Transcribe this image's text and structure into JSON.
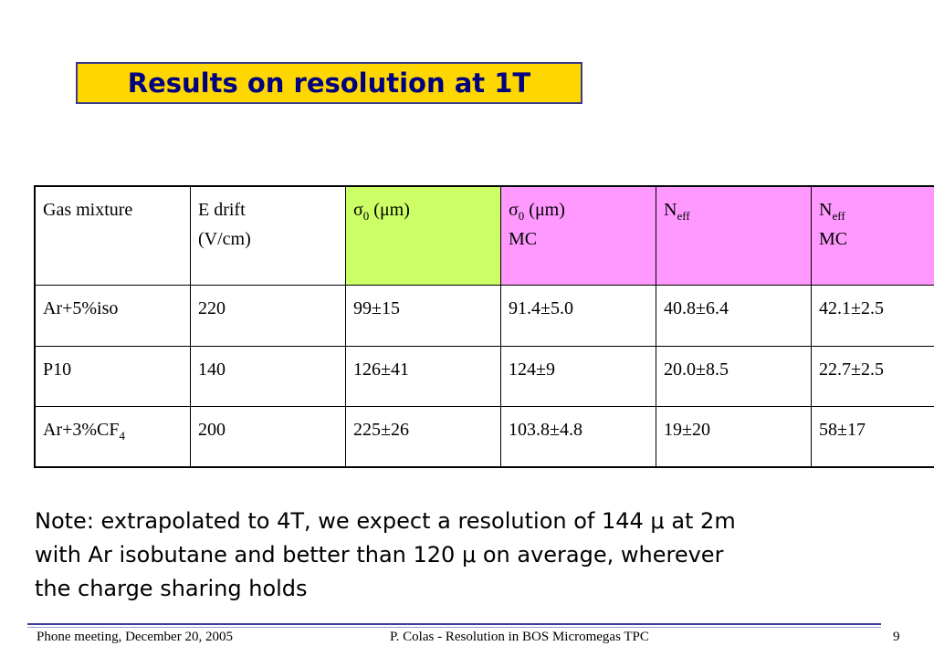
{
  "title": "Results on resolution at 1T",
  "table": {
    "header": [
      {
        "text": "Gas mixture"
      },
      {
        "text": "E drift",
        "line2": "(V/cm)"
      },
      {
        "text": "σ",
        "sub": "0",
        "after": " (μm)"
      },
      {
        "text": "σ",
        "sub": "0",
        "after": " (μm)",
        "line2": "MC"
      },
      {
        "text": "N",
        "sub": "eff"
      },
      {
        "text": "N",
        "sub": "eff",
        "line2": "MC"
      }
    ],
    "rows": [
      [
        {
          "text": "Ar+5%iso"
        },
        {
          "text": "220"
        },
        {
          "text": "99±15"
        },
        {
          "text": "91.4±5.0"
        },
        {
          "text": "40.8±6.4"
        },
        {
          "text": "42.1±2.5"
        }
      ],
      [
        {
          "text": "P10"
        },
        {
          "text": "140"
        },
        {
          "text": "126±41"
        },
        {
          "text": "124±9"
        },
        {
          "text": "20.0±8.5"
        },
        {
          "text": "22.7±2.5"
        }
      ],
      [
        {
          "text": "Ar+3%CF",
          "sub": "4"
        },
        {
          "text": "200"
        },
        {
          "text": "225±26"
        },
        {
          "text": "103.8±4.8"
        },
        {
          "text": "19±20"
        },
        {
          "text": "58±17"
        }
      ]
    ]
  },
  "note": {
    "lines": [
      "Note: extrapolated to 4T, we expect a resolution of 144 μ at 2m",
      "with Ar isobutane and better than 120 μ on average, wherever",
      "the charge sharing holds"
    ]
  },
  "footer": {
    "left": "Phone meeting, December 20, 2005",
    "center": "P. Colas  -  Resolution in BOS Micromegas TPC",
    "right": "9"
  }
}
